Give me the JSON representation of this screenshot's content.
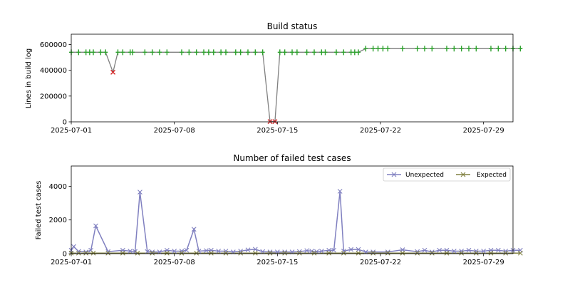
{
  "chart_data": [
    {
      "type": "line",
      "title": "Build status",
      "ylabel": "Lines in build log",
      "xlabel": "",
      "xlim": [
        "2025-07-01",
        "2025-07-31"
      ],
      "ylim": [
        0,
        680000
      ],
      "yticks": [
        0,
        200000,
        400000,
        600000
      ],
      "xticks": [
        "2025-07-01",
        "2025-07-08",
        "2025-07-15",
        "2025-07-22",
        "2025-07-29"
      ],
      "grid": false,
      "colors": {
        "line": "#808080",
        "pass": "#2ca02c",
        "fail": "#d62728"
      },
      "points": [
        {
          "x": "2025-07-01 00:00",
          "y": 540000,
          "status": "pass"
        },
        {
          "x": "2025-07-01 12:00",
          "y": 540000,
          "status": "pass"
        },
        {
          "x": "2025-07-02 00:00",
          "y": 540000,
          "status": "pass"
        },
        {
          "x": "2025-07-02 06:00",
          "y": 540000,
          "status": "pass"
        },
        {
          "x": "2025-07-02 12:00",
          "y": 540000,
          "status": "pass"
        },
        {
          "x": "2025-07-03 00:00",
          "y": 540000,
          "status": "pass"
        },
        {
          "x": "2025-07-03 08:00",
          "y": 540000,
          "status": "pass"
        },
        {
          "x": "2025-07-03 20:00",
          "y": 385000,
          "status": "fail"
        },
        {
          "x": "2025-07-04 04:00",
          "y": 540000,
          "status": "pass"
        },
        {
          "x": "2025-07-04 12:00",
          "y": 540000,
          "status": "pass"
        },
        {
          "x": "2025-07-05 00:00",
          "y": 540000,
          "status": "pass"
        },
        {
          "x": "2025-07-05 04:00",
          "y": 540000,
          "status": "pass"
        },
        {
          "x": "2025-07-06 00:00",
          "y": 540000,
          "status": "pass"
        },
        {
          "x": "2025-07-06 12:00",
          "y": 540000,
          "status": "pass"
        },
        {
          "x": "2025-07-07 00:00",
          "y": 540000,
          "status": "pass"
        },
        {
          "x": "2025-07-07 12:00",
          "y": 540000,
          "status": "pass"
        },
        {
          "x": "2025-07-08 12:00",
          "y": 540000,
          "status": "pass"
        },
        {
          "x": "2025-07-09 00:00",
          "y": 540000,
          "status": "pass"
        },
        {
          "x": "2025-07-09 12:00",
          "y": 540000,
          "status": "pass"
        },
        {
          "x": "2025-07-10 00:00",
          "y": 540000,
          "status": "pass"
        },
        {
          "x": "2025-07-10 08:00",
          "y": 540000,
          "status": "pass"
        },
        {
          "x": "2025-07-10 16:00",
          "y": 540000,
          "status": "pass"
        },
        {
          "x": "2025-07-11 04:00",
          "y": 540000,
          "status": "pass"
        },
        {
          "x": "2025-07-11 12:00",
          "y": 540000,
          "status": "pass"
        },
        {
          "x": "2025-07-12 04:00",
          "y": 540000,
          "status": "pass"
        },
        {
          "x": "2025-07-12 12:00",
          "y": 540000,
          "status": "pass"
        },
        {
          "x": "2025-07-13 00:00",
          "y": 540000,
          "status": "pass"
        },
        {
          "x": "2025-07-13 12:00",
          "y": 540000,
          "status": "pass"
        },
        {
          "x": "2025-07-14 00:00",
          "y": 540000,
          "status": "pass"
        },
        {
          "x": "2025-07-14 12:00",
          "y": 2000,
          "status": "fail"
        },
        {
          "x": "2025-07-14 20:00",
          "y": 2000,
          "status": "fail"
        },
        {
          "x": "2025-07-15 04:00",
          "y": 540000,
          "status": "pass"
        },
        {
          "x": "2025-07-15 12:00",
          "y": 540000,
          "status": "pass"
        },
        {
          "x": "2025-07-16 00:00",
          "y": 540000,
          "status": "pass"
        },
        {
          "x": "2025-07-16 08:00",
          "y": 540000,
          "status": "pass"
        },
        {
          "x": "2025-07-17 00:00",
          "y": 540000,
          "status": "pass"
        },
        {
          "x": "2025-07-17 12:00",
          "y": 540000,
          "status": "pass"
        },
        {
          "x": "2025-07-18 00:00",
          "y": 540000,
          "status": "pass"
        },
        {
          "x": "2025-07-18 06:00",
          "y": 540000,
          "status": "pass"
        },
        {
          "x": "2025-07-19 00:00",
          "y": 540000,
          "status": "pass"
        },
        {
          "x": "2025-07-19 12:00",
          "y": 540000,
          "status": "pass"
        },
        {
          "x": "2025-07-20 00:00",
          "y": 540000,
          "status": "pass"
        },
        {
          "x": "2025-07-20 06:00",
          "y": 540000,
          "status": "pass"
        },
        {
          "x": "2025-07-20 12:00",
          "y": 540000,
          "status": "pass"
        },
        {
          "x": "2025-07-21 00:00",
          "y": 568000,
          "status": "pass"
        },
        {
          "x": "2025-07-21 12:00",
          "y": 568000,
          "status": "pass"
        },
        {
          "x": "2025-07-21 20:00",
          "y": 568000,
          "status": "pass"
        },
        {
          "x": "2025-07-22 04:00",
          "y": 568000,
          "status": "pass"
        },
        {
          "x": "2025-07-22 12:00",
          "y": 568000,
          "status": "pass"
        },
        {
          "x": "2025-07-23 12:00",
          "y": 568000,
          "status": "pass"
        },
        {
          "x": "2025-07-24 12:00",
          "y": 568000,
          "status": "pass"
        },
        {
          "x": "2025-07-25 00:00",
          "y": 568000,
          "status": "pass"
        },
        {
          "x": "2025-07-25 12:00",
          "y": 568000,
          "status": "pass"
        },
        {
          "x": "2025-07-26 12:00",
          "y": 568000,
          "status": "pass"
        },
        {
          "x": "2025-07-27 00:00",
          "y": 568000,
          "status": "pass"
        },
        {
          "x": "2025-07-27 12:00",
          "y": 568000,
          "status": "pass"
        },
        {
          "x": "2025-07-28 00:00",
          "y": 568000,
          "status": "pass"
        },
        {
          "x": "2025-07-28 12:00",
          "y": 568000,
          "status": "pass"
        },
        {
          "x": "2025-07-29 12:00",
          "y": 568000,
          "status": "pass"
        },
        {
          "x": "2025-07-30 00:00",
          "y": 568000,
          "status": "pass"
        },
        {
          "x": "2025-07-30 12:00",
          "y": 568000,
          "status": "pass"
        },
        {
          "x": "2025-07-31 00:00",
          "y": 568000,
          "status": "pass"
        },
        {
          "x": "2025-07-31 12:00",
          "y": 568000,
          "status": "pass"
        }
      ]
    },
    {
      "type": "line",
      "title": "Number of failed test cases",
      "ylabel": "Failed test cases",
      "xlabel": "",
      "xlim": [
        "2025-07-01",
        "2025-07-31"
      ],
      "ylim": [
        0,
        5200
      ],
      "yticks": [
        0,
        2000,
        4000
      ],
      "xticks": [
        "2025-07-01",
        "2025-07-08",
        "2025-07-15",
        "2025-07-22",
        "2025-07-29"
      ],
      "grid": false,
      "legend": "top-right",
      "series": [
        {
          "name": "Unexpected",
          "color": "#8080c0",
          "points": [
            [
              "2025-07-01 00:00",
              200
            ],
            [
              "2025-07-01 04:00",
              420
            ],
            [
              "2025-07-01 12:00",
              130
            ],
            [
              "2025-07-02 00:00",
              100
            ],
            [
              "2025-07-02 08:00",
              200
            ],
            [
              "2025-07-02 16:00",
              1650
            ],
            [
              "2025-07-03 12:00",
              120
            ],
            [
              "2025-07-04 12:00",
              200
            ],
            [
              "2025-07-05 00:00",
              150
            ],
            [
              "2025-07-05 08:00",
              130
            ],
            [
              "2025-07-05 16:00",
              3650
            ],
            [
              "2025-07-06 04:00",
              120
            ],
            [
              "2025-07-06 12:00",
              100
            ],
            [
              "2025-07-07 00:00",
              100
            ],
            [
              "2025-07-07 12:00",
              200
            ],
            [
              "2025-07-08 00:00",
              150
            ],
            [
              "2025-07-08 12:00",
              150
            ],
            [
              "2025-07-08 20:00",
              200
            ],
            [
              "2025-07-09 08:00",
              1450
            ],
            [
              "2025-07-09 16:00",
              150
            ],
            [
              "2025-07-10 04:00",
              180
            ],
            [
              "2025-07-10 12:00",
              200
            ],
            [
              "2025-07-11 00:00",
              150
            ],
            [
              "2025-07-11 12:00",
              150
            ],
            [
              "2025-07-12 00:00",
              100
            ],
            [
              "2025-07-12 12:00",
              150
            ],
            [
              "2025-07-13 00:00",
              220
            ],
            [
              "2025-07-13 12:00",
              260
            ],
            [
              "2025-07-14 00:00",
              120
            ],
            [
              "2025-07-14 12:00",
              100
            ],
            [
              "2025-07-15 00:00",
              100
            ],
            [
              "2025-07-15 12:00",
              100
            ],
            [
              "2025-07-16 00:00",
              100
            ],
            [
              "2025-07-16 12:00",
              120
            ],
            [
              "2025-07-17 00:00",
              180
            ],
            [
              "2025-07-17 08:00",
              150
            ],
            [
              "2025-07-17 16:00",
              120
            ],
            [
              "2025-07-18 00:00",
              150
            ],
            [
              "2025-07-18 12:00",
              200
            ],
            [
              "2025-07-18 20:00",
              200
            ],
            [
              "2025-07-19 06:00",
              3700
            ],
            [
              "2025-07-19 12:00",
              150
            ],
            [
              "2025-07-20 00:00",
              250
            ],
            [
              "2025-07-20 12:00",
              250
            ],
            [
              "2025-07-21 00:00",
              100
            ],
            [
              "2025-07-21 12:00",
              100
            ],
            [
              "2025-07-22 12:00",
              100
            ],
            [
              "2025-07-23 12:00",
              230
            ],
            [
              "2025-07-24 12:00",
              120
            ],
            [
              "2025-07-25 00:00",
              200
            ],
            [
              "2025-07-25 12:00",
              100
            ],
            [
              "2025-07-26 00:00",
              200
            ],
            [
              "2025-07-26 12:00",
              200
            ],
            [
              "2025-07-27 00:00",
              150
            ],
            [
              "2025-07-27 12:00",
              150
            ],
            [
              "2025-07-28 00:00",
              200
            ],
            [
              "2025-07-28 12:00",
              150
            ],
            [
              "2025-07-29 00:00",
              150
            ],
            [
              "2025-07-29 12:00",
              200
            ],
            [
              "2025-07-30 00:00",
              200
            ],
            [
              "2025-07-30 12:00",
              150
            ],
            [
              "2025-07-31 00:00",
              200
            ],
            [
              "2025-07-31 12:00",
              200
            ]
          ]
        },
        {
          "name": "Expected",
          "color": "#808040",
          "points": [
            [
              "2025-07-01 00:00",
              30
            ],
            [
              "2025-07-01 12:00",
              30
            ],
            [
              "2025-07-02 00:00",
              30
            ],
            [
              "2025-07-02 12:00",
              30
            ],
            [
              "2025-07-03 12:00",
              30
            ],
            [
              "2025-07-04 12:00",
              30
            ],
            [
              "2025-07-05 12:00",
              30
            ],
            [
              "2025-07-06 12:00",
              30
            ],
            [
              "2025-07-07 12:00",
              30
            ],
            [
              "2025-07-08 12:00",
              30
            ],
            [
              "2025-07-09 12:00",
              30
            ],
            [
              "2025-07-10 12:00",
              30
            ],
            [
              "2025-07-11 12:00",
              30
            ],
            [
              "2025-07-12 12:00",
              30
            ],
            [
              "2025-07-13 12:00",
              30
            ],
            [
              "2025-07-14 12:00",
              30
            ],
            [
              "2025-07-15 12:00",
              30
            ],
            [
              "2025-07-16 12:00",
              30
            ],
            [
              "2025-07-17 12:00",
              30
            ],
            [
              "2025-07-18 12:00",
              30
            ],
            [
              "2025-07-19 12:00",
              30
            ],
            [
              "2025-07-20 12:00",
              30
            ],
            [
              "2025-07-21 12:00",
              30
            ],
            [
              "2025-07-22 12:00",
              30
            ],
            [
              "2025-07-23 12:00",
              30
            ],
            [
              "2025-07-24 12:00",
              30
            ],
            [
              "2025-07-25 12:00",
              30
            ],
            [
              "2025-07-26 12:00",
              30
            ],
            [
              "2025-07-27 12:00",
              30
            ],
            [
              "2025-07-28 12:00",
              30
            ],
            [
              "2025-07-29 12:00",
              30
            ],
            [
              "2025-07-30 12:00",
              30
            ],
            [
              "2025-07-31 12:00",
              30
            ]
          ]
        }
      ]
    }
  ]
}
